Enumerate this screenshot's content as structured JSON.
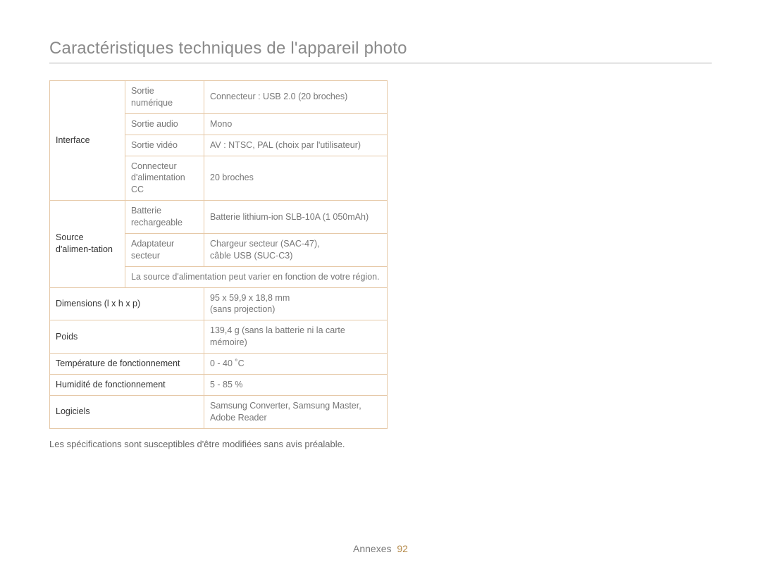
{
  "title": "Caractéristiques techniques de l'appareil photo",
  "table": {
    "border_color": "#e6c9a8",
    "rows": [
      {
        "category": "Interface",
        "category_rowspan": 4,
        "sub": "Sortie numérique",
        "value": "Connecteur : USB 2.0 (20 broches)"
      },
      {
        "sub": "Sortie audio",
        "value": "Mono"
      },
      {
        "sub": "Sortie vidéo",
        "value": "AV : NTSC, PAL (choix par l'utilisateur)"
      },
      {
        "sub": "Connecteur d'alimentation CC",
        "value": "20 broches"
      },
      {
        "category": "Source d'alimen-tation",
        "category_rowspan": 3,
        "sub": "Batterie rechargeable",
        "value": "Batterie lithium-ion SLB-10A (1 050mAh)"
      },
      {
        "sub": "Adaptateur secteur",
        "value": "Chargeur secteur (SAC-47),\ncâble USB (SUC-C3)"
      },
      {
        "full_note": "La source d'alimentation peut varier en fonction de votre région."
      },
      {
        "category": "Dimensions (l x h x p)",
        "category_colspan": 2,
        "value": "95 x 59,9 x 18,8 mm\n(sans projection)"
      },
      {
        "category": "Poids",
        "category_colspan": 2,
        "value": "139,4 g (sans la batterie ni la carte mémoire)"
      },
      {
        "category": "Température de fonctionnement",
        "category_colspan": 2,
        "value": "0 - 40 ˚C"
      },
      {
        "category": "Humidité de fonctionnement",
        "category_colspan": 2,
        "value": "5 - 85 %"
      },
      {
        "category": "Logiciels",
        "category_colspan": 2,
        "value": "Samsung Converter, Samsung Master, Adobe Reader"
      }
    ]
  },
  "footnote": "Les spécifications sont susceptibles d'être modifiées sans avis préalable.",
  "footer": {
    "section": "Annexes",
    "page_number": "92"
  }
}
